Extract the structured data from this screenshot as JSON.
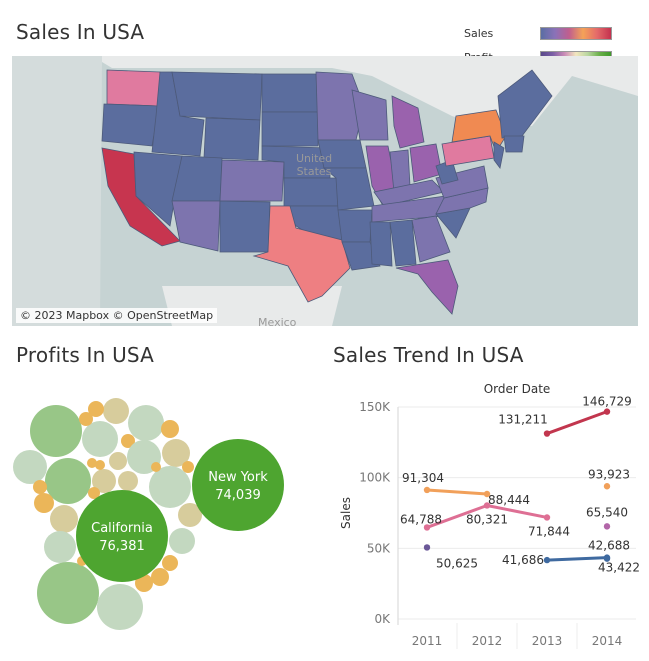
{
  "map": {
    "title": "Sales In USA",
    "legend_sales": "Sales",
    "legend_profit": "Profit",
    "attribution": "© 2023 Mapbox © OpenStreetMap",
    "country_label": "United States",
    "mexico_label": "Mexico",
    "colors": {
      "low": "#5b6d9e",
      "mid": "#7d74ae",
      "purple": "#9a62ad",
      "pink": "#e07a9f",
      "coral": "#ee7f82",
      "orange": "#f08a52",
      "red": "#c7354f",
      "land": "#e8eaea",
      "water": "#c6d3d3"
    }
  },
  "profits": {
    "title": "Profits In USA",
    "colors": {
      "dark_green": "#4ea530",
      "mid_green": "#98c687",
      "light_green": "#c3d8c0",
      "tan": "#d7cc9c",
      "gold": "#ebb659"
    }
  },
  "trend": {
    "title": "Sales Trend In USA",
    "axis_title": "Order Date",
    "ylabel": "Sales"
  },
  "chart_data": [
    {
      "type": "map",
      "title": "Sales In USA",
      "legend": [
        "Sales",
        "Profit"
      ]
    },
    {
      "type": "bubble",
      "title": "Profits In USA",
      "labeled": [
        {
          "name": "New York",
          "value": 74039,
          "display": "74,039"
        },
        {
          "name": "California",
          "value": 76381,
          "display": "76,381"
        }
      ]
    },
    {
      "type": "line",
      "title": "Sales Trend In USA",
      "xlabel": "Order Date",
      "ylabel": "Sales",
      "x": [
        "2011",
        "2012",
        "2013",
        "2014"
      ],
      "ylim": [
        0,
        150000
      ],
      "yticks": [
        0,
        50000,
        100000,
        150000
      ],
      "ytick_labels": [
        "0K",
        "50K",
        "100K",
        "150K"
      ],
      "series": [
        {
          "color": "#c2364e",
          "values": [
            null,
            null,
            131211,
            146729
          ],
          "labels": [
            "",
            "",
            "131,211",
            "146,729"
          ]
        },
        {
          "color": "#f1a05a",
          "values": [
            91304,
            88444,
            null,
            93923
          ],
          "labels": [
            "91,304",
            "88,444",
            "",
            "93,923"
          ]
        },
        {
          "color": "#de6f94",
          "values": [
            64788,
            80321,
            71844,
            null
          ],
          "labels": [
            "64,788",
            "80,321",
            "71,844",
            ""
          ]
        },
        {
          "color": "#b266a8",
          "values": [
            null,
            null,
            null,
            65540
          ],
          "labels": [
            "",
            "",
            "",
            "65,540"
          ]
        },
        {
          "color": "#6b5898",
          "values": [
            50625,
            null,
            null,
            null
          ],
          "labels": [
            "50,625",
            "",
            "",
            ""
          ]
        },
        {
          "color": "#3f6aa0",
          "values": [
            null,
            null,
            41686,
            43422
          ],
          "labels": [
            "",
            "",
            "41,686",
            "43,422"
          ]
        },
        {
          "color": "#3f6aa0",
          "values": [
            null,
            null,
            null,
            42688
          ],
          "labels": [
            "",
            "",
            "",
            "42,688"
          ]
        }
      ]
    }
  ]
}
